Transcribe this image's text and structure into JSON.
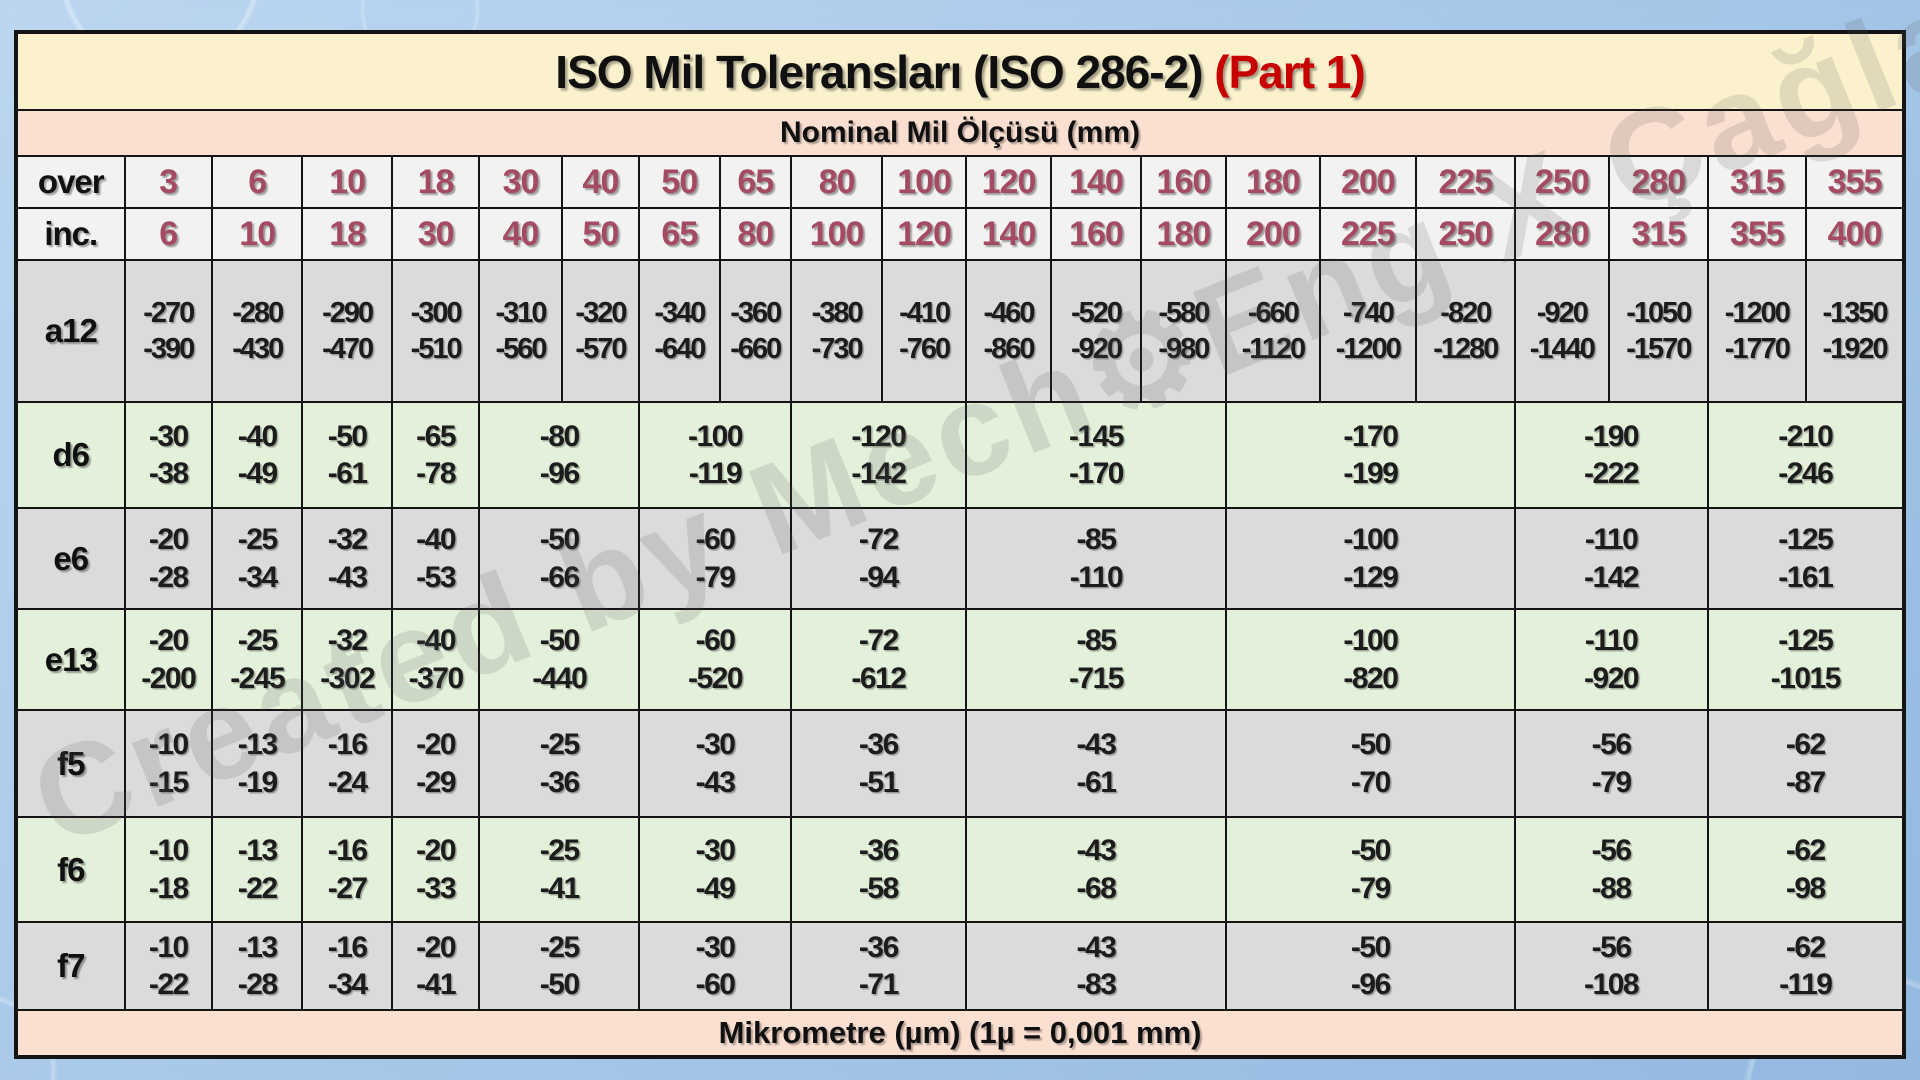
{
  "title": {
    "main": "ISO Mil Toleransları (ISO 286-2)",
    "part": " (Part 1)"
  },
  "subtitle": "Nominal Mil Ölçüsü (mm)",
  "footer": "Mikrometre (µm) (1µ = 0,001 mm)",
  "watermark": "Created by Mech⚙Eng X Çağlar",
  "colors": {
    "title_bg": "#FBF2CD",
    "band_bg": "#FBDFD0",
    "size_number": "#A44A62",
    "part_red": "#C80000",
    "gray_row": "#DBDBDB",
    "green_row": "#E3F0DA",
    "page_blue": "#A7C6E9"
  },
  "size_header": {
    "over_label": "over",
    "inc_label": "inc.",
    "over": [
      "3",
      "6",
      "10",
      "18",
      "30",
      "40",
      "50",
      "65",
      "80",
      "100",
      "120",
      "140",
      "160",
      "180",
      "200",
      "225",
      "250",
      "280",
      "315",
      "355"
    ],
    "inc": [
      "6",
      "10",
      "18",
      "30",
      "40",
      "50",
      "65",
      "80",
      "100",
      "120",
      "140",
      "160",
      "180",
      "200",
      "225",
      "250",
      "280",
      "315",
      "355",
      "400"
    ]
  },
  "tolerance_rows": [
    {
      "grade": "a12",
      "shade": "gray",
      "cells": [
        {
          "upper": "-270",
          "lower": "-390",
          "span": 1
        },
        {
          "upper": "-280",
          "lower": "-430",
          "span": 1
        },
        {
          "upper": "-290",
          "lower": "-470",
          "span": 1
        },
        {
          "upper": "-300",
          "lower": "-510",
          "span": 1
        },
        {
          "upper": "-310",
          "lower": "-560",
          "span": 1
        },
        {
          "upper": "-320",
          "lower": "-570",
          "span": 1
        },
        {
          "upper": "-340",
          "lower": "-640",
          "span": 1
        },
        {
          "upper": "-360",
          "lower": "-660",
          "span": 1
        },
        {
          "upper": "-380",
          "lower": "-730",
          "span": 1
        },
        {
          "upper": "-410",
          "lower": "-760",
          "span": 1
        },
        {
          "upper": "-460",
          "lower": "-860",
          "span": 1
        },
        {
          "upper": "-520",
          "lower": "-920",
          "span": 1
        },
        {
          "upper": "-580",
          "lower": "-980",
          "span": 1
        },
        {
          "upper": "-660",
          "lower": "-1120",
          "span": 1
        },
        {
          "upper": "-740",
          "lower": "-1200",
          "span": 1
        },
        {
          "upper": "-820",
          "lower": "-1280",
          "span": 1
        },
        {
          "upper": "-920",
          "lower": "-1440",
          "span": 1
        },
        {
          "upper": "-1050",
          "lower": "-1570",
          "span": 1
        },
        {
          "upper": "-1200",
          "lower": "-1770",
          "span": 1
        },
        {
          "upper": "-1350",
          "lower": "-1920",
          "span": 1
        }
      ]
    },
    {
      "grade": "d6",
      "shade": "green",
      "cells": [
        {
          "upper": "-30",
          "lower": "-38",
          "span": 1
        },
        {
          "upper": "-40",
          "lower": "-49",
          "span": 1
        },
        {
          "upper": "-50",
          "lower": "-61",
          "span": 1
        },
        {
          "upper": "-65",
          "lower": "-78",
          "span": 1
        },
        {
          "upper": "-80",
          "lower": "-96",
          "span": 2
        },
        {
          "upper": "-100",
          "lower": "-119",
          "span": 2
        },
        {
          "upper": "-120",
          "lower": "-142",
          "span": 2
        },
        {
          "upper": "-145",
          "lower": "-170",
          "span": 3
        },
        {
          "upper": "-170",
          "lower": "-199",
          "span": 3
        },
        {
          "upper": "-190",
          "lower": "-222",
          "span": 2
        },
        {
          "upper": "-210",
          "lower": "-246",
          "span": 2
        }
      ]
    },
    {
      "grade": "e6",
      "shade": "gray",
      "cells": [
        {
          "upper": "-20",
          "lower": "-28",
          "span": 1
        },
        {
          "upper": "-25",
          "lower": "-34",
          "span": 1
        },
        {
          "upper": "-32",
          "lower": "-43",
          "span": 1
        },
        {
          "upper": "-40",
          "lower": "-53",
          "span": 1
        },
        {
          "upper": "-50",
          "lower": "-66",
          "span": 2
        },
        {
          "upper": "-60",
          "lower": "-79",
          "span": 2
        },
        {
          "upper": "-72",
          "lower": "-94",
          "span": 2
        },
        {
          "upper": "-85",
          "lower": "-110",
          "span": 3
        },
        {
          "upper": "-100",
          "lower": "-129",
          "span": 3
        },
        {
          "upper": "-110",
          "lower": "-142",
          "span": 2
        },
        {
          "upper": "-125",
          "lower": "-161",
          "span": 2
        }
      ]
    },
    {
      "grade": "e13",
      "shade": "green",
      "cells": [
        {
          "upper": "-20",
          "lower": "-200",
          "span": 1
        },
        {
          "upper": "-25",
          "lower": "-245",
          "span": 1
        },
        {
          "upper": "-32",
          "lower": "-302",
          "span": 1
        },
        {
          "upper": "-40",
          "lower": "-370",
          "span": 1
        },
        {
          "upper": "-50",
          "lower": "-440",
          "span": 2
        },
        {
          "upper": "-60",
          "lower": "-520",
          "span": 2
        },
        {
          "upper": "-72",
          "lower": "-612",
          "span": 2
        },
        {
          "upper": "-85",
          "lower": "-715",
          "span": 3
        },
        {
          "upper": "-100",
          "lower": "-820",
          "span": 3
        },
        {
          "upper": "-110",
          "lower": "-920",
          "span": 2
        },
        {
          "upper": "-125",
          "lower": "-1015",
          "span": 2
        }
      ]
    },
    {
      "grade": "f5",
      "shade": "gray",
      "cells": [
        {
          "upper": "-10",
          "lower": "-15",
          "span": 1
        },
        {
          "upper": "-13",
          "lower": "-19",
          "span": 1
        },
        {
          "upper": "-16",
          "lower": "-24",
          "span": 1
        },
        {
          "upper": "-20",
          "lower": "-29",
          "span": 1
        },
        {
          "upper": "-25",
          "lower": "-36",
          "span": 2
        },
        {
          "upper": "-30",
          "lower": "-43",
          "span": 2
        },
        {
          "upper": "-36",
          "lower": "-51",
          "span": 2
        },
        {
          "upper": "-43",
          "lower": "-61",
          "span": 3
        },
        {
          "upper": "-50",
          "lower": "-70",
          "span": 3
        },
        {
          "upper": "-56",
          "lower": "-79",
          "span": 2
        },
        {
          "upper": "-62",
          "lower": "-87",
          "span": 2
        }
      ]
    },
    {
      "grade": "f6",
      "shade": "green",
      "cells": [
        {
          "upper": "-10",
          "lower": "-18",
          "span": 1
        },
        {
          "upper": "-13",
          "lower": "-22",
          "span": 1
        },
        {
          "upper": "-16",
          "lower": "-27",
          "span": 1
        },
        {
          "upper": "-20",
          "lower": "-33",
          "span": 1
        },
        {
          "upper": "-25",
          "lower": "-41",
          "span": 2
        },
        {
          "upper": "-30",
          "lower": "-49",
          "span": 2
        },
        {
          "upper": "-36",
          "lower": "-58",
          "span": 2
        },
        {
          "upper": "-43",
          "lower": "-68",
          "span": 3
        },
        {
          "upper": "-50",
          "lower": "-79",
          "span": 3
        },
        {
          "upper": "-56",
          "lower": "-88",
          "span": 2
        },
        {
          "upper": "-62",
          "lower": "-98",
          "span": 2
        }
      ]
    },
    {
      "grade": "f7",
      "shade": "gray",
      "cells": [
        {
          "upper": "-10",
          "lower": "-22",
          "span": 1
        },
        {
          "upper": "-13",
          "lower": "-28",
          "span": 1
        },
        {
          "upper": "-16",
          "lower": "-34",
          "span": 1
        },
        {
          "upper": "-20",
          "lower": "-41",
          "span": 1
        },
        {
          "upper": "-25",
          "lower": "-50",
          "span": 2
        },
        {
          "upper": "-30",
          "lower": "-60",
          "span": 2
        },
        {
          "upper": "-36",
          "lower": "-71",
          "span": 2
        },
        {
          "upper": "-43",
          "lower": "-83",
          "span": 3
        },
        {
          "upper": "-50",
          "lower": "-96",
          "span": 3
        },
        {
          "upper": "-56",
          "lower": "-108",
          "span": 2
        },
        {
          "upper": "-62",
          "lower": "-119",
          "span": 2
        }
      ]
    }
  ]
}
